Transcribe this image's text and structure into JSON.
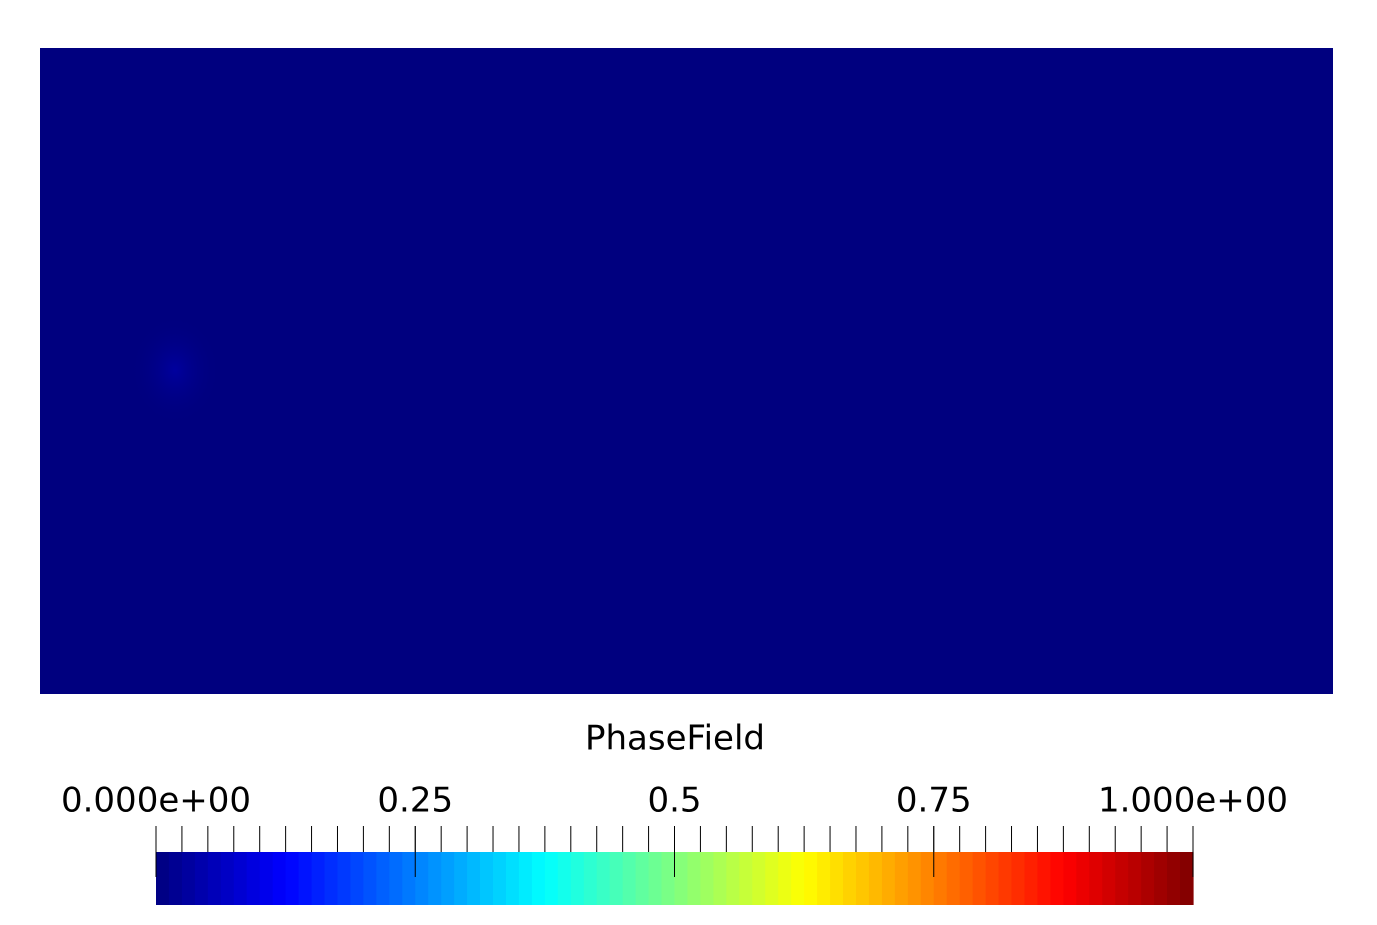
{
  "chart_data": {
    "type": "field",
    "title": "PhaseField",
    "background_value": 0,
    "peak_value": 0.03,
    "lim": [
      0,
      1
    ],
    "ticks": [
      {
        "value": 0,
        "label": "0.000e+00"
      },
      0.25,
      0.5,
      0.75,
      {
        "value": 1,
        "label": "1.000e+00"
      }
    ],
    "minor_ticks": [
      0,
      0.025,
      0.05,
      0.075,
      0.1,
      0.125,
      0.15,
      0.175,
      0.2,
      0.225,
      0.25,
      0.275,
      0.3,
      0.325,
      0.35,
      0.375,
      0.4,
      0.425,
      0.45,
      0.475,
      0.5,
      0.525,
      0.55,
      0.575,
      0.6,
      0.625,
      0.65,
      0.675,
      0.7,
      0.725,
      0.75,
      0.775,
      0.8,
      0.825,
      0.85,
      0.875,
      0.9,
      0.925,
      0.95,
      0.975,
      1
    ],
    "colormap": [
      {
        "value": 0,
        "color": "#00007f"
      },
      {
        "value": 0.125,
        "color": "#0000ff"
      },
      {
        "value": 0.375,
        "color": "#00ffff"
      },
      {
        "value": 0.625,
        "color": "#ffff00"
      },
      {
        "value": 0.875,
        "color": "#ff0000"
      },
      {
        "value": 1,
        "color": "#7f0000"
      }
    ]
  }
}
